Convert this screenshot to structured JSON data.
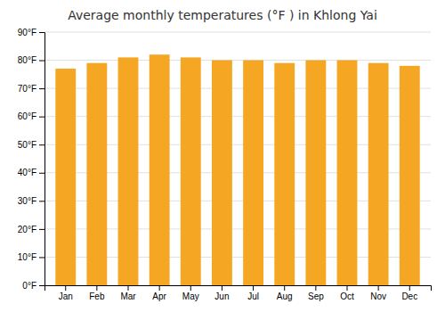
{
  "chart_data": {
    "type": "bar",
    "title": "Average monthly temperatures (°F ) in Khlong Yai",
    "categories": [
      "Jan",
      "Feb",
      "Mar",
      "Apr",
      "May",
      "Jun",
      "Jul",
      "Aug",
      "Sep",
      "Oct",
      "Nov",
      "Dec"
    ],
    "values": [
      77,
      79,
      81,
      82,
      81,
      80,
      80,
      79,
      80,
      80,
      79,
      78
    ],
    "color": "#F5A623",
    "ylim": [
      0,
      90
    ],
    "yticks": [
      {
        "value": 0,
        "label": "0°F"
      },
      {
        "value": 10,
        "label": "10°F"
      },
      {
        "value": 20,
        "label": "20°F"
      },
      {
        "value": 30,
        "label": "30°F"
      },
      {
        "value": 40,
        "label": "40°F"
      },
      {
        "value": 50,
        "label": "50°F"
      },
      {
        "value": 60,
        "label": "60°F"
      },
      {
        "value": 70,
        "label": "70°F"
      },
      {
        "value": 80,
        "label": "80°F"
      },
      {
        "value": 90,
        "label": "90°F"
      }
    ],
    "grid": true
  }
}
